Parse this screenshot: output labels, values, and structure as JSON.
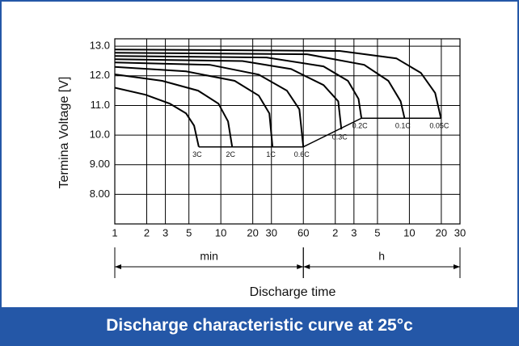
{
  "chart_data": {
    "type": "line",
    "title": "Discharge characteristic curve at 25°c",
    "x_label": "Discharge time",
    "y_label": "Termina Voltage [V]",
    "x_log": true,
    "grid": true,
    "color": "#000000",
    "xlim": [
      1,
      1800
    ],
    "ylim": [
      7,
      13.25
    ],
    "xticks": [
      1,
      2,
      3,
      5,
      10,
      20,
      30,
      60,
      {
        "value": 120,
        "label": "2"
      },
      {
        "value": 180,
        "label": "3"
      },
      {
        "value": 300,
        "label": "5"
      },
      {
        "value": 600,
        "label": "10"
      },
      {
        "value": 1200,
        "label": "20"
      },
      {
        "value": 1800,
        "label": "30"
      }
    ],
    "yticks": [
      {
        "value": 13,
        "label": "13.0"
      },
      {
        "value": 12,
        "label": "12.0"
      },
      {
        "value": 11,
        "label": "11.0"
      },
      {
        "value": 10,
        "label": "10.0"
      },
      {
        "value": 9,
        "label": "9.00"
      },
      {
        "value": 8,
        "label": "8.00"
      }
    ],
    "unit_ranges": [
      {
        "label": "min",
        "from": 1,
        "to": 60
      },
      {
        "label": "h",
        "from": 60,
        "to": 1800
      }
    ],
    "series": [
      {
        "name": "3C",
        "x": [
          1,
          1.95,
          3.3,
          4.7,
          5.6,
          6.2
        ],
        "values": [
          11.6,
          11.36,
          11.06,
          10.73,
          10.32,
          9.6
        ]
      },
      {
        "name": "2C",
        "x": [
          1,
          2.8,
          6.1,
          9.5,
          11.7,
          12.8
        ],
        "values": [
          12.05,
          11.83,
          11.5,
          11.06,
          10.46,
          9.6
        ]
      },
      {
        "name": "1C",
        "x": [
          1,
          4.7,
          13.5,
          22.8,
          28.7,
          30.7
        ],
        "values": [
          12.3,
          12.15,
          11.83,
          11.33,
          10.73,
          9.6
        ]
      },
      {
        "name": "0.6C",
        "x": [
          1,
          7.9,
          22.8,
          42,
          55,
          60
        ],
        "values": [
          12.45,
          12.37,
          12.04,
          11.5,
          10.87,
          9.6
        ]
      },
      {
        "name": "0.3C",
        "x": [
          1,
          16,
          46,
          93,
          128,
          137
        ],
        "values": [
          12.56,
          12.5,
          12.23,
          11.69,
          11.14,
          10.19
        ]
      },
      {
        "name": "0.2C",
        "x": [
          1,
          27,
          93,
          158,
          199,
          212
        ],
        "values": [
          12.67,
          12.62,
          12.32,
          11.83,
          11.22,
          10.57
        ]
      },
      {
        "name": "0.1C",
        "x": [
          1,
          65,
          225,
          380,
          496,
          540
        ],
        "values": [
          12.78,
          12.73,
          12.37,
          11.83,
          11.14,
          10.57
        ]
      },
      {
        "name": "0.05C",
        "x": [
          1,
          132,
          452,
          770,
          1050,
          1190
        ],
        "values": [
          12.89,
          12.84,
          12.59,
          12.1,
          11.42,
          10.57
        ]
      }
    ],
    "end_voltage": {
      "x": [
        6.2,
        60,
        212,
        1190
      ],
      "values": [
        9.6,
        9.6,
        10.57,
        10.57
      ]
    }
  }
}
